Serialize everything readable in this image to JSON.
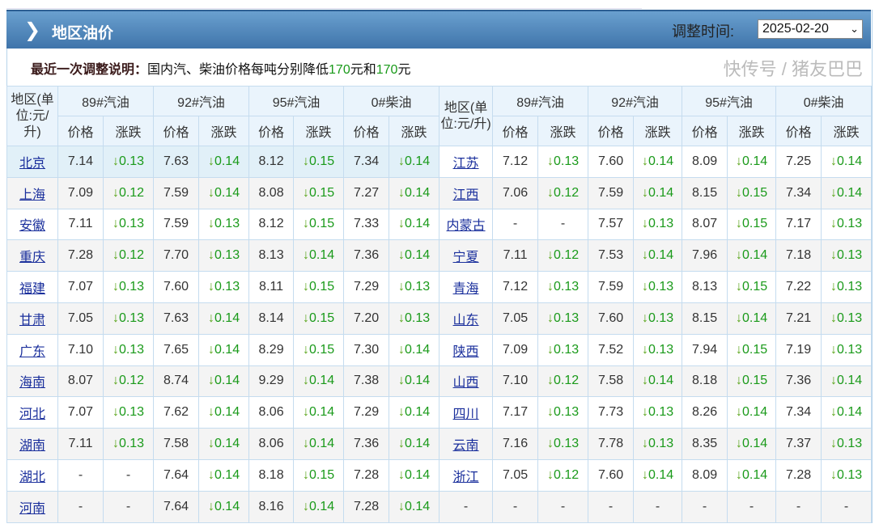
{
  "header": {
    "title": "地区油价",
    "adjust_label": "调整时间:",
    "date_value": "2025-02-20",
    "colors": {
      "bar_top": "#6aa0cf",
      "bar_bottom": "#3f74aa"
    }
  },
  "note": {
    "label": "最近一次调整说明：",
    "text1": "国内汽、柴油价格每吨分别降低",
    "amount1": "170",
    "text2": "元和",
    "amount2": "170",
    "text3": "元"
  },
  "table": {
    "region_header": "地区(单位:元/升)",
    "fuel_headers": [
      "89#汽油",
      "92#汽油",
      "95#汽油",
      "0#柴油"
    ],
    "sub_headers": [
      "价格",
      "涨跌"
    ],
    "change_arrow": "↓",
    "rows": [
      [
        [
          "北京",
          "7.14",
          "0.13",
          "7.63",
          "0.14",
          "8.12",
          "0.15",
          "7.34",
          "0.14"
        ],
        [
          "江苏",
          "7.12",
          "0.13",
          "7.60",
          "0.14",
          "8.09",
          "0.14",
          "7.25",
          "0.14"
        ]
      ],
      [
        [
          "上海",
          "7.09",
          "0.12",
          "7.59",
          "0.14",
          "8.08",
          "0.15",
          "7.27",
          "0.14"
        ],
        [
          "江西",
          "7.06",
          "0.12",
          "7.59",
          "0.14",
          "8.15",
          "0.15",
          "7.34",
          "0.14"
        ]
      ],
      [
        [
          "安徽",
          "7.11",
          "0.13",
          "7.59",
          "0.13",
          "8.12",
          "0.15",
          "7.33",
          "0.14"
        ],
        [
          "内蒙古",
          "-",
          "-",
          "7.57",
          "0.13",
          "8.07",
          "0.15",
          "7.17",
          "0.13"
        ]
      ],
      [
        [
          "重庆",
          "7.28",
          "0.12",
          "7.70",
          "0.13",
          "8.13",
          "0.14",
          "7.36",
          "0.14"
        ],
        [
          "宁夏",
          "7.11",
          "0.12",
          "7.53",
          "0.14",
          "7.96",
          "0.14",
          "7.18",
          "0.13"
        ]
      ],
      [
        [
          "福建",
          "7.07",
          "0.13",
          "7.60",
          "0.13",
          "8.11",
          "0.15",
          "7.29",
          "0.13"
        ],
        [
          "青海",
          "7.12",
          "0.13",
          "7.59",
          "0.13",
          "8.13",
          "0.15",
          "7.22",
          "0.13"
        ]
      ],
      [
        [
          "甘肃",
          "7.05",
          "0.13",
          "7.63",
          "0.14",
          "8.14",
          "0.15",
          "7.20",
          "0.13"
        ],
        [
          "山东",
          "7.05",
          "0.13",
          "7.60",
          "0.13",
          "8.15",
          "0.14",
          "7.21",
          "0.13"
        ]
      ],
      [
        [
          "广东",
          "7.10",
          "0.13",
          "7.65",
          "0.14",
          "8.29",
          "0.15",
          "7.30",
          "0.14"
        ],
        [
          "陕西",
          "7.09",
          "0.13",
          "7.52",
          "0.13",
          "7.94",
          "0.15",
          "7.19",
          "0.13"
        ]
      ],
      [
        [
          "海南",
          "8.07",
          "0.12",
          "8.74",
          "0.14",
          "9.29",
          "0.14",
          "7.38",
          "0.14"
        ],
        [
          "山西",
          "7.10",
          "0.12",
          "7.58",
          "0.14",
          "8.18",
          "0.15",
          "7.36",
          "0.14"
        ]
      ],
      [
        [
          "河北",
          "7.07",
          "0.13",
          "7.62",
          "0.14",
          "8.06",
          "0.14",
          "7.29",
          "0.14"
        ],
        [
          "四川",
          "7.17",
          "0.13",
          "7.73",
          "0.13",
          "8.26",
          "0.14",
          "7.34",
          "0.14"
        ]
      ],
      [
        [
          "湖南",
          "7.11",
          "0.13",
          "7.58",
          "0.14",
          "8.06",
          "0.14",
          "7.36",
          "0.14"
        ],
        [
          "云南",
          "7.16",
          "0.13",
          "7.78",
          "0.13",
          "8.35",
          "0.14",
          "7.37",
          "0.13"
        ]
      ],
      [
        [
          "湖北",
          "-",
          "-",
          "7.64",
          "0.14",
          "8.18",
          "0.15",
          "7.28",
          "0.14"
        ],
        [
          "浙江",
          "7.05",
          "0.12",
          "7.60",
          "0.14",
          "8.09",
          "0.14",
          "7.28",
          "0.13"
        ]
      ],
      [
        [
          "河南",
          "-",
          "-",
          "7.64",
          "0.14",
          "8.16",
          "0.14",
          "7.28",
          "0.14"
        ],
        [
          "-",
          "-",
          "-",
          "-",
          "-",
          "-",
          "-",
          "-",
          "-"
        ]
      ]
    ]
  },
  "watermark": "快传号 / 猪友巴巴"
}
